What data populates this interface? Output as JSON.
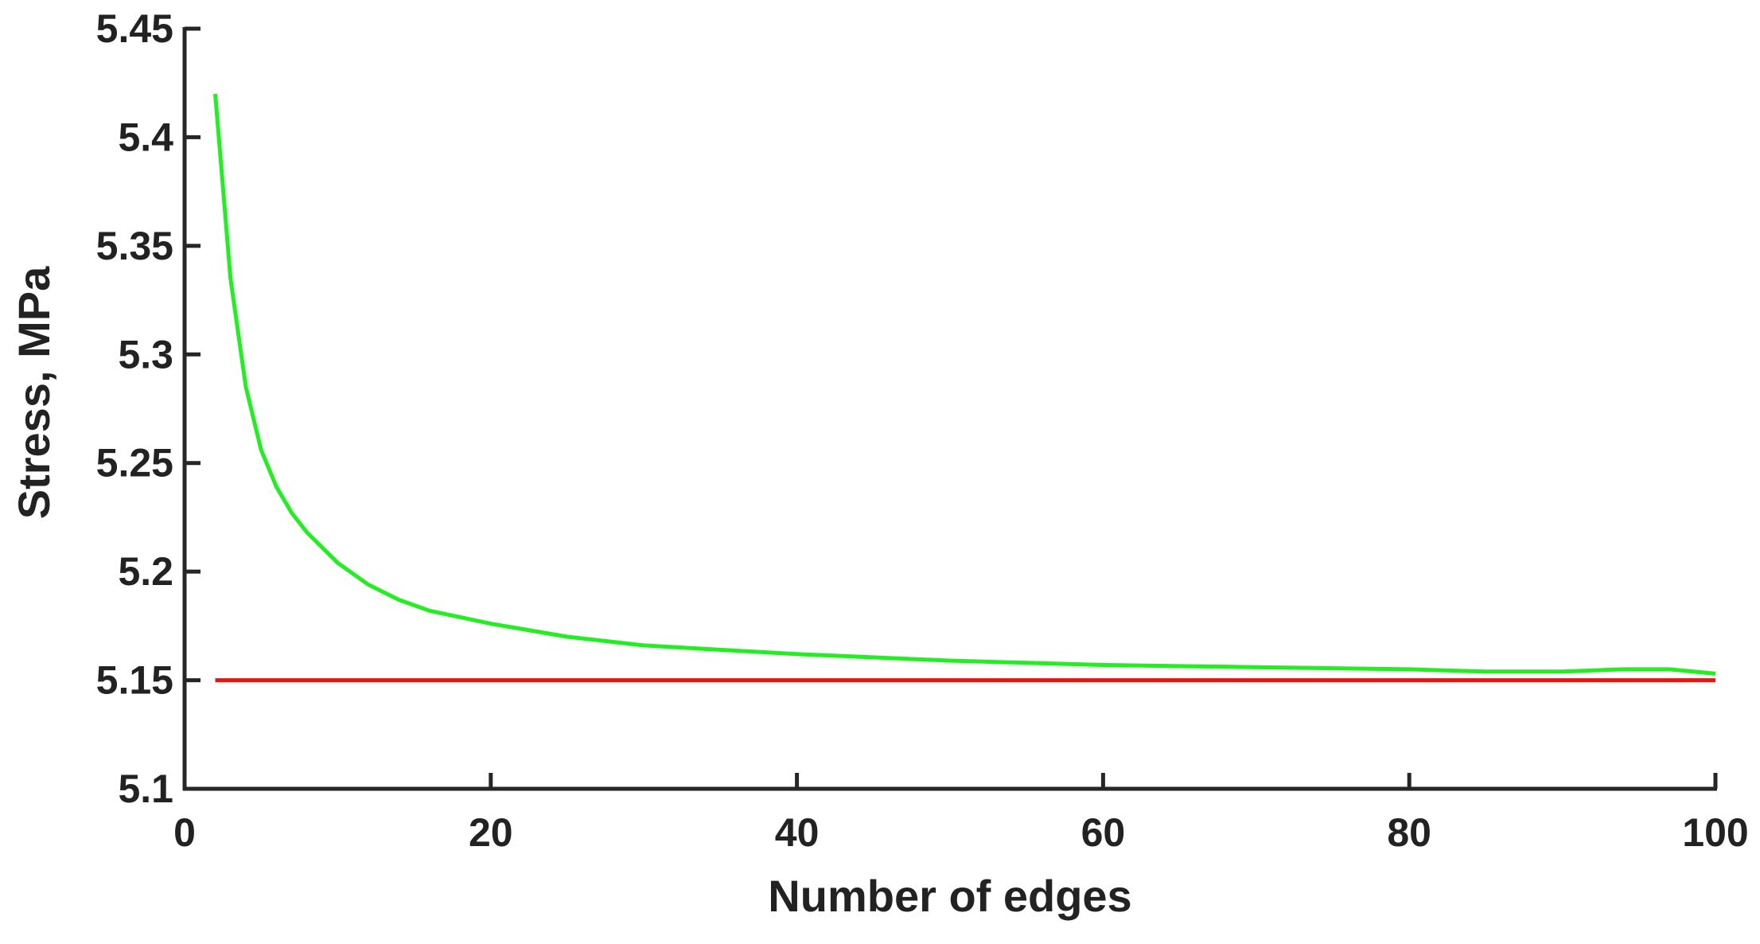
{
  "chart_data": {
    "type": "line",
    "title": "",
    "xlabel": "Number of edges",
    "ylabel": "Stress, MPa",
    "xlim": [
      0,
      100
    ],
    "ylim": [
      5.1,
      5.45
    ],
    "x_ticks": [
      0,
      20,
      40,
      60,
      80,
      100
    ],
    "x_tick_labels": [
      "0",
      "20",
      "40",
      "60",
      "80",
      "100"
    ],
    "y_ticks": [
      5.1,
      5.15,
      5.2,
      5.25,
      5.3,
      5.35,
      5.4,
      5.45
    ],
    "y_tick_labels": [
      "5.1",
      "5.15",
      "5.2",
      "5.25",
      "5.3",
      "5.35",
      "5.4",
      "5.45"
    ],
    "grid": false,
    "legend": false,
    "series": [
      {
        "color": "#22ee22",
        "x": [
          2,
          3,
          4,
          5,
          6,
          7,
          8,
          10,
          12,
          14,
          16,
          18,
          20,
          25,
          30,
          35,
          40,
          50,
          60,
          70,
          80,
          85,
          88,
          90,
          94,
          97,
          100
        ],
        "y": [
          5.42,
          5.335,
          5.285,
          5.256,
          5.239,
          5.227,
          5.218,
          5.204,
          5.194,
          5.187,
          5.182,
          5.179,
          5.176,
          5.17,
          5.166,
          5.164,
          5.162,
          5.159,
          5.157,
          5.156,
          5.155,
          5.154,
          5.154,
          5.154,
          5.155,
          5.155,
          5.153
        ]
      },
      {
        "color": "#ee1111",
        "x": [
          2,
          100
        ],
        "y": [
          5.15,
          5.15
        ]
      }
    ]
  }
}
